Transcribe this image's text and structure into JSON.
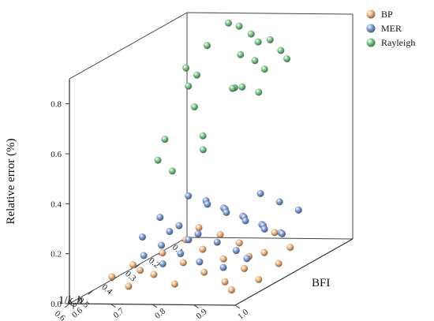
{
  "chart_data": {
    "type": "scatter",
    "projection": "3d",
    "axes": {
      "x": {
        "label": "1/k_p h",
        "label_main": "1/",
        "label_k": "k",
        "label_sub": "p",
        "label_h": "h",
        "range": [
          0.1,
          0.6
        ],
        "ticks": [
          "0.1",
          "0.2",
          "0.3",
          "0.4",
          "0.5",
          "0.6"
        ]
      },
      "y": {
        "label": "BFI",
        "range": [
          0.6,
          1.0
        ],
        "ticks": [
          "0.6",
          "0.7",
          "0.8",
          "0.9",
          "1.0"
        ]
      },
      "z": {
        "label": "Relative error (%)",
        "range": [
          0.0,
          0.9
        ],
        "ticks": [
          "0.0",
          "0.2",
          "0.4",
          "0.6",
          "0.8"
        ]
      }
    },
    "legend_position": "top-right",
    "grid": false,
    "colors": {
      "BP": "#f3b783",
      "MER": "#7f9fd9",
      "Rayleigh": "#7cc98a"
    },
    "series": [
      {
        "name": "BP",
        "points": [
          [
            0.12,
            0.64,
            0.05
          ],
          [
            0.17,
            0.72,
            0.05
          ],
          [
            0.23,
            0.8,
            0.05
          ],
          [
            0.3,
            0.9,
            0.05
          ],
          [
            0.38,
            0.98,
            0.05
          ],
          [
            0.21,
            0.66,
            0.05
          ],
          [
            0.28,
            0.74,
            0.05
          ],
          [
            0.35,
            0.83,
            0.05
          ],
          [
            0.42,
            0.92,
            0.05
          ],
          [
            0.31,
            0.66,
            0.05
          ],
          [
            0.38,
            0.75,
            0.05
          ],
          [
            0.45,
            0.84,
            0.05
          ],
          [
            0.52,
            0.93,
            0.05
          ],
          [
            0.4,
            0.64,
            0.05
          ],
          [
            0.47,
            0.73,
            0.05
          ],
          [
            0.54,
            0.82,
            0.05
          ],
          [
            0.49,
            0.64,
            0.05
          ],
          [
            0.56,
            0.72,
            0.05
          ],
          [
            0.15,
            0.84,
            0.05
          ],
          [
            0.26,
            0.94,
            0.05
          ],
          [
            0.5,
            1.0,
            0.05
          ],
          [
            0.58,
            0.98,
            0.05
          ],
          [
            0.44,
            0.68,
            0.05
          ],
          [
            0.33,
            0.88,
            0.05
          ]
        ]
      },
      {
        "name": "MER",
        "points": [
          [
            0.12,
            0.7,
            0.13
          ],
          [
            0.18,
            0.78,
            0.13
          ],
          [
            0.24,
            0.86,
            0.13
          ],
          [
            0.3,
            0.94,
            0.13
          ],
          [
            0.16,
            0.68,
            0.18
          ],
          [
            0.22,
            0.76,
            0.18
          ],
          [
            0.28,
            0.84,
            0.18
          ],
          [
            0.34,
            0.92,
            0.18
          ],
          [
            0.4,
            1.0,
            0.18
          ],
          [
            0.2,
            0.66,
            0.22
          ],
          [
            0.26,
            0.74,
            0.22
          ],
          [
            0.32,
            0.82,
            0.22
          ],
          [
            0.38,
            0.9,
            0.22
          ],
          [
            0.44,
            0.98,
            0.22
          ],
          [
            0.25,
            0.62,
            0.16
          ],
          [
            0.31,
            0.7,
            0.16
          ],
          [
            0.37,
            0.78,
            0.16
          ],
          [
            0.43,
            0.86,
            0.16
          ],
          [
            0.49,
            0.94,
            0.16
          ],
          [
            0.55,
            1.0,
            0.16
          ],
          [
            0.14,
            0.8,
            0.2
          ],
          [
            0.2,
            0.88,
            0.2
          ],
          [
            0.26,
            0.96,
            0.2
          ],
          [
            0.36,
            0.64,
            0.14
          ],
          [
            0.42,
            0.72,
            0.14
          ],
          [
            0.48,
            0.8,
            0.14
          ],
          [
            0.54,
            0.88,
            0.14
          ],
          [
            0.58,
            0.96,
            0.14
          ],
          [
            0.28,
            0.66,
            0.12
          ],
          [
            0.34,
            0.74,
            0.12
          ],
          [
            0.46,
            0.7,
            0.12
          ],
          [
            0.52,
            0.78,
            0.12
          ]
        ]
      },
      {
        "name": "Rayleigh",
        "points": [
          [
            0.1,
            0.7,
            0.86
          ],
          [
            0.16,
            0.76,
            0.88
          ],
          [
            0.24,
            0.88,
            0.87
          ],
          [
            0.3,
            0.94,
            0.86
          ],
          [
            0.38,
            1.0,
            0.87
          ],
          [
            0.18,
            0.8,
            0.86
          ],
          [
            0.22,
            0.84,
            0.85
          ],
          [
            0.12,
            0.66,
            0.78
          ],
          [
            0.26,
            0.82,
            0.82
          ],
          [
            0.34,
            0.9,
            0.84
          ],
          [
            0.44,
            0.98,
            0.86
          ],
          [
            0.5,
            1.0,
            0.8
          ],
          [
            0.14,
            0.62,
            0.7
          ],
          [
            0.2,
            0.66,
            0.66
          ],
          [
            0.32,
            0.84,
            0.72
          ],
          [
            0.4,
            0.88,
            0.76
          ],
          [
            0.5,
            0.96,
            0.82
          ],
          [
            0.28,
            0.72,
            0.62
          ],
          [
            0.42,
            0.82,
            0.58
          ],
          [
            0.3,
            0.66,
            0.5
          ],
          [
            0.4,
            0.7,
            0.47
          ],
          [
            0.48,
            0.78,
            0.47
          ],
          [
            0.56,
            0.9,
            0.6
          ],
          [
            0.34,
            0.76,
            0.78
          ]
        ]
      }
    ]
  }
}
